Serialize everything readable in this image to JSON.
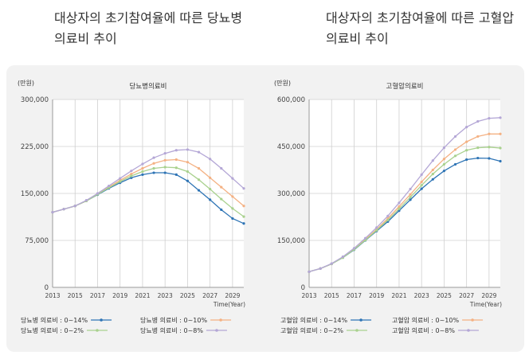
{
  "captions": {
    "left": [
      "대상자의 초기참여율에 따른 당뇨병",
      "의료비 추이"
    ],
    "right": [
      "대상자의 초기참여율에 따른 고혈압",
      "의료비 추이"
    ]
  },
  "chart_data": [
    {
      "type": "line",
      "title": "당뇨병의료비",
      "ylabel": "(만원)",
      "xlabel": "Time(Year)",
      "ylim": [
        0,
        300000
      ],
      "yticks": [
        "0",
        "75,000",
        "150,000",
        "225,000",
        "300,000"
      ],
      "ytick_values": [
        0,
        75000,
        150000,
        225000,
        300000
      ],
      "xticks": [
        "2013",
        "2015",
        "2017",
        "2019",
        "2021",
        "2023",
        "2025",
        "2027",
        "2029"
      ],
      "xtick_values": [
        2013,
        2015,
        2017,
        2019,
        2021,
        2023,
        2025,
        2027,
        2029
      ],
      "xlim": [
        2013,
        2030
      ],
      "grid": true,
      "legend_position": "bottom",
      "x": [
        2013,
        2014,
        2015,
        2016,
        2017,
        2018,
        2019,
        2020,
        2021,
        2022,
        2023,
        2024,
        2025,
        2026,
        2027,
        2028,
        2029,
        2030
      ],
      "series": [
        {
          "name": "당뇨병 의료비 : 0~14%",
          "color": "#2e74b5",
          "values": [
            120000,
            125000,
            130000,
            138000,
            148000,
            158000,
            167000,
            175000,
            180000,
            183000,
            183000,
            180000,
            170000,
            155000,
            140000,
            124000,
            110000,
            102000
          ]
        },
        {
          "name": "당뇨병 의료비 : 0~10%",
          "color": "#f4b183",
          "values": [
            120000,
            125000,
            130000,
            138000,
            149000,
            160000,
            171000,
            181000,
            190000,
            198000,
            203000,
            204000,
            200000,
            190000,
            175000,
            160000,
            145000,
            130000
          ]
        },
        {
          "name": "당뇨병 의료비 : 0~2%",
          "color": "#a9d18e",
          "values": [
            120000,
            125000,
            130000,
            138000,
            148500,
            159000,
            169000,
            178000,
            185000,
            190000,
            192000,
            191000,
            185000,
            172000,
            157000,
            141000,
            126000,
            113000
          ]
        },
        {
          "name": "당뇨병 의료비 : 0~8%",
          "color": "#b4a7d6",
          "values": [
            120000,
            125000,
            130000,
            139000,
            150000,
            162000,
            174000,
            186000,
            197000,
            207000,
            214000,
            219000,
            220000,
            216000,
            205000,
            190000,
            174000,
            158000
          ]
        }
      ]
    },
    {
      "type": "line",
      "title": "고혈압의료비",
      "ylabel": "(만원)",
      "xlabel": "Time(Year)",
      "ylim": [
        0,
        600000
      ],
      "yticks": [
        "0",
        "150,000",
        "300,000",
        "450,000",
        "600,000"
      ],
      "ytick_values": [
        0,
        150000,
        300000,
        450000,
        600000
      ],
      "xticks": [
        "2013",
        "2015",
        "2017",
        "2019",
        "2021",
        "2023",
        "2025",
        "2027",
        "2029"
      ],
      "xtick_values": [
        2013,
        2015,
        2017,
        2019,
        2021,
        2023,
        2025,
        2027,
        2029
      ],
      "xlim": [
        2013,
        2030
      ],
      "grid": true,
      "legend_position": "bottom",
      "x": [
        2013,
        2014,
        2015,
        2016,
        2017,
        2018,
        2019,
        2020,
        2021,
        2022,
        2023,
        2024,
        2025,
        2026,
        2027,
        2028,
        2029,
        2030
      ],
      "series": [
        {
          "name": "고혈압 의료비 : 0~14%",
          "color": "#2e74b5",
          "values": [
            50000,
            60000,
            75000,
            95000,
            120000,
            150000,
            180000,
            210000,
            245000,
            280000,
            315000,
            345000,
            372000,
            393000,
            408000,
            413000,
            412000,
            403000
          ]
        },
        {
          "name": "고혈압 의료비 : 0~10%",
          "color": "#f4b183",
          "values": [
            50000,
            60000,
            75000,
            96000,
            122000,
            153000,
            185000,
            220000,
            258000,
            297000,
            337000,
            375000,
            410000,
            440000,
            465000,
            482000,
            490000,
            490000
          ]
        },
        {
          "name": "고혈압 의료비 : 0~2%",
          "color": "#a9d18e",
          "values": [
            50000,
            60000,
            75000,
            95000,
            121000,
            151000,
            182000,
            215000,
            251000,
            288000,
            326000,
            362000,
            393000,
            420000,
            438000,
            446000,
            448000,
            445000
          ]
        },
        {
          "name": "고혈압 의료비 : 0~8%",
          "color": "#b4a7d6",
          "values": [
            50000,
            60000,
            76000,
            98000,
            125000,
            157000,
            191000,
            228000,
            270000,
            314000,
            360000,
            405000,
            446000,
            482000,
            512000,
            530000,
            540000,
            542000
          ]
        }
      ]
    }
  ]
}
